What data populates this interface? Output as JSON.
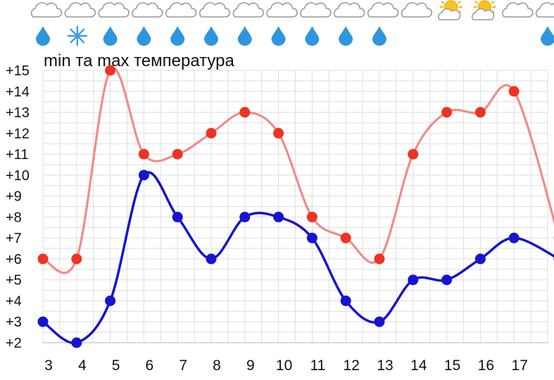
{
  "chart_data": {
    "type": "line",
    "title": "min та max температура",
    "x": [
      "3",
      "4",
      "5",
      "6",
      "7",
      "8",
      "9",
      "10",
      "11",
      "12",
      "13",
      "14",
      "15",
      "16",
      "17",
      ""
    ],
    "y_ticks": [
      "+2",
      "+3",
      "+4",
      "+5",
      "+6",
      "+7",
      "+8",
      "+9",
      "+10",
      "+11",
      "+12",
      "+13",
      "+14",
      "+15"
    ],
    "ylim": [
      2,
      15
    ],
    "grid": true,
    "series": [
      {
        "name": "",
        "role": "max",
        "color": "#ef8c88",
        "marker_color": "#ee3322",
        "values": [
          6,
          6,
          15,
          11,
          11,
          12,
          13,
          12,
          8,
          7,
          6,
          11,
          13,
          13,
          14,
          7
        ]
      },
      {
        "name": "",
        "role": "min",
        "color": "#1515d0",
        "marker_color": "#1515d0",
        "values": [
          3,
          2,
          4,
          10,
          8,
          6,
          8,
          8,
          7,
          4,
          3,
          5,
          5,
          6,
          7,
          6
        ]
      }
    ],
    "weather_icons": {
      "sky": [
        "cloud-icon",
        "cloud-icon",
        "cloud-icon",
        "cloud-icon",
        "cloud-icon",
        "cloud-icon",
        "cloud-icon",
        "cloud-icon",
        "cloud-icon",
        "cloud-icon",
        "cloud-icon",
        "cloud-icon",
        "sun-cloud-icon",
        "sun-cloud-icon",
        "cloud-icon",
        "cloud-icon"
      ],
      "precip": [
        "rain-drop-icon",
        "snowflake-icon",
        "rain-drop-icon",
        "rain-drop-icon",
        "rain-drop-icon",
        "rain-drop-icon",
        "rain-drop-icon",
        "rain-drop-icon",
        "rain-drop-icon",
        "rain-drop-icon",
        "rain-drop-icon",
        "",
        "",
        "",
        "",
        "rain-drop-icon"
      ]
    }
  }
}
